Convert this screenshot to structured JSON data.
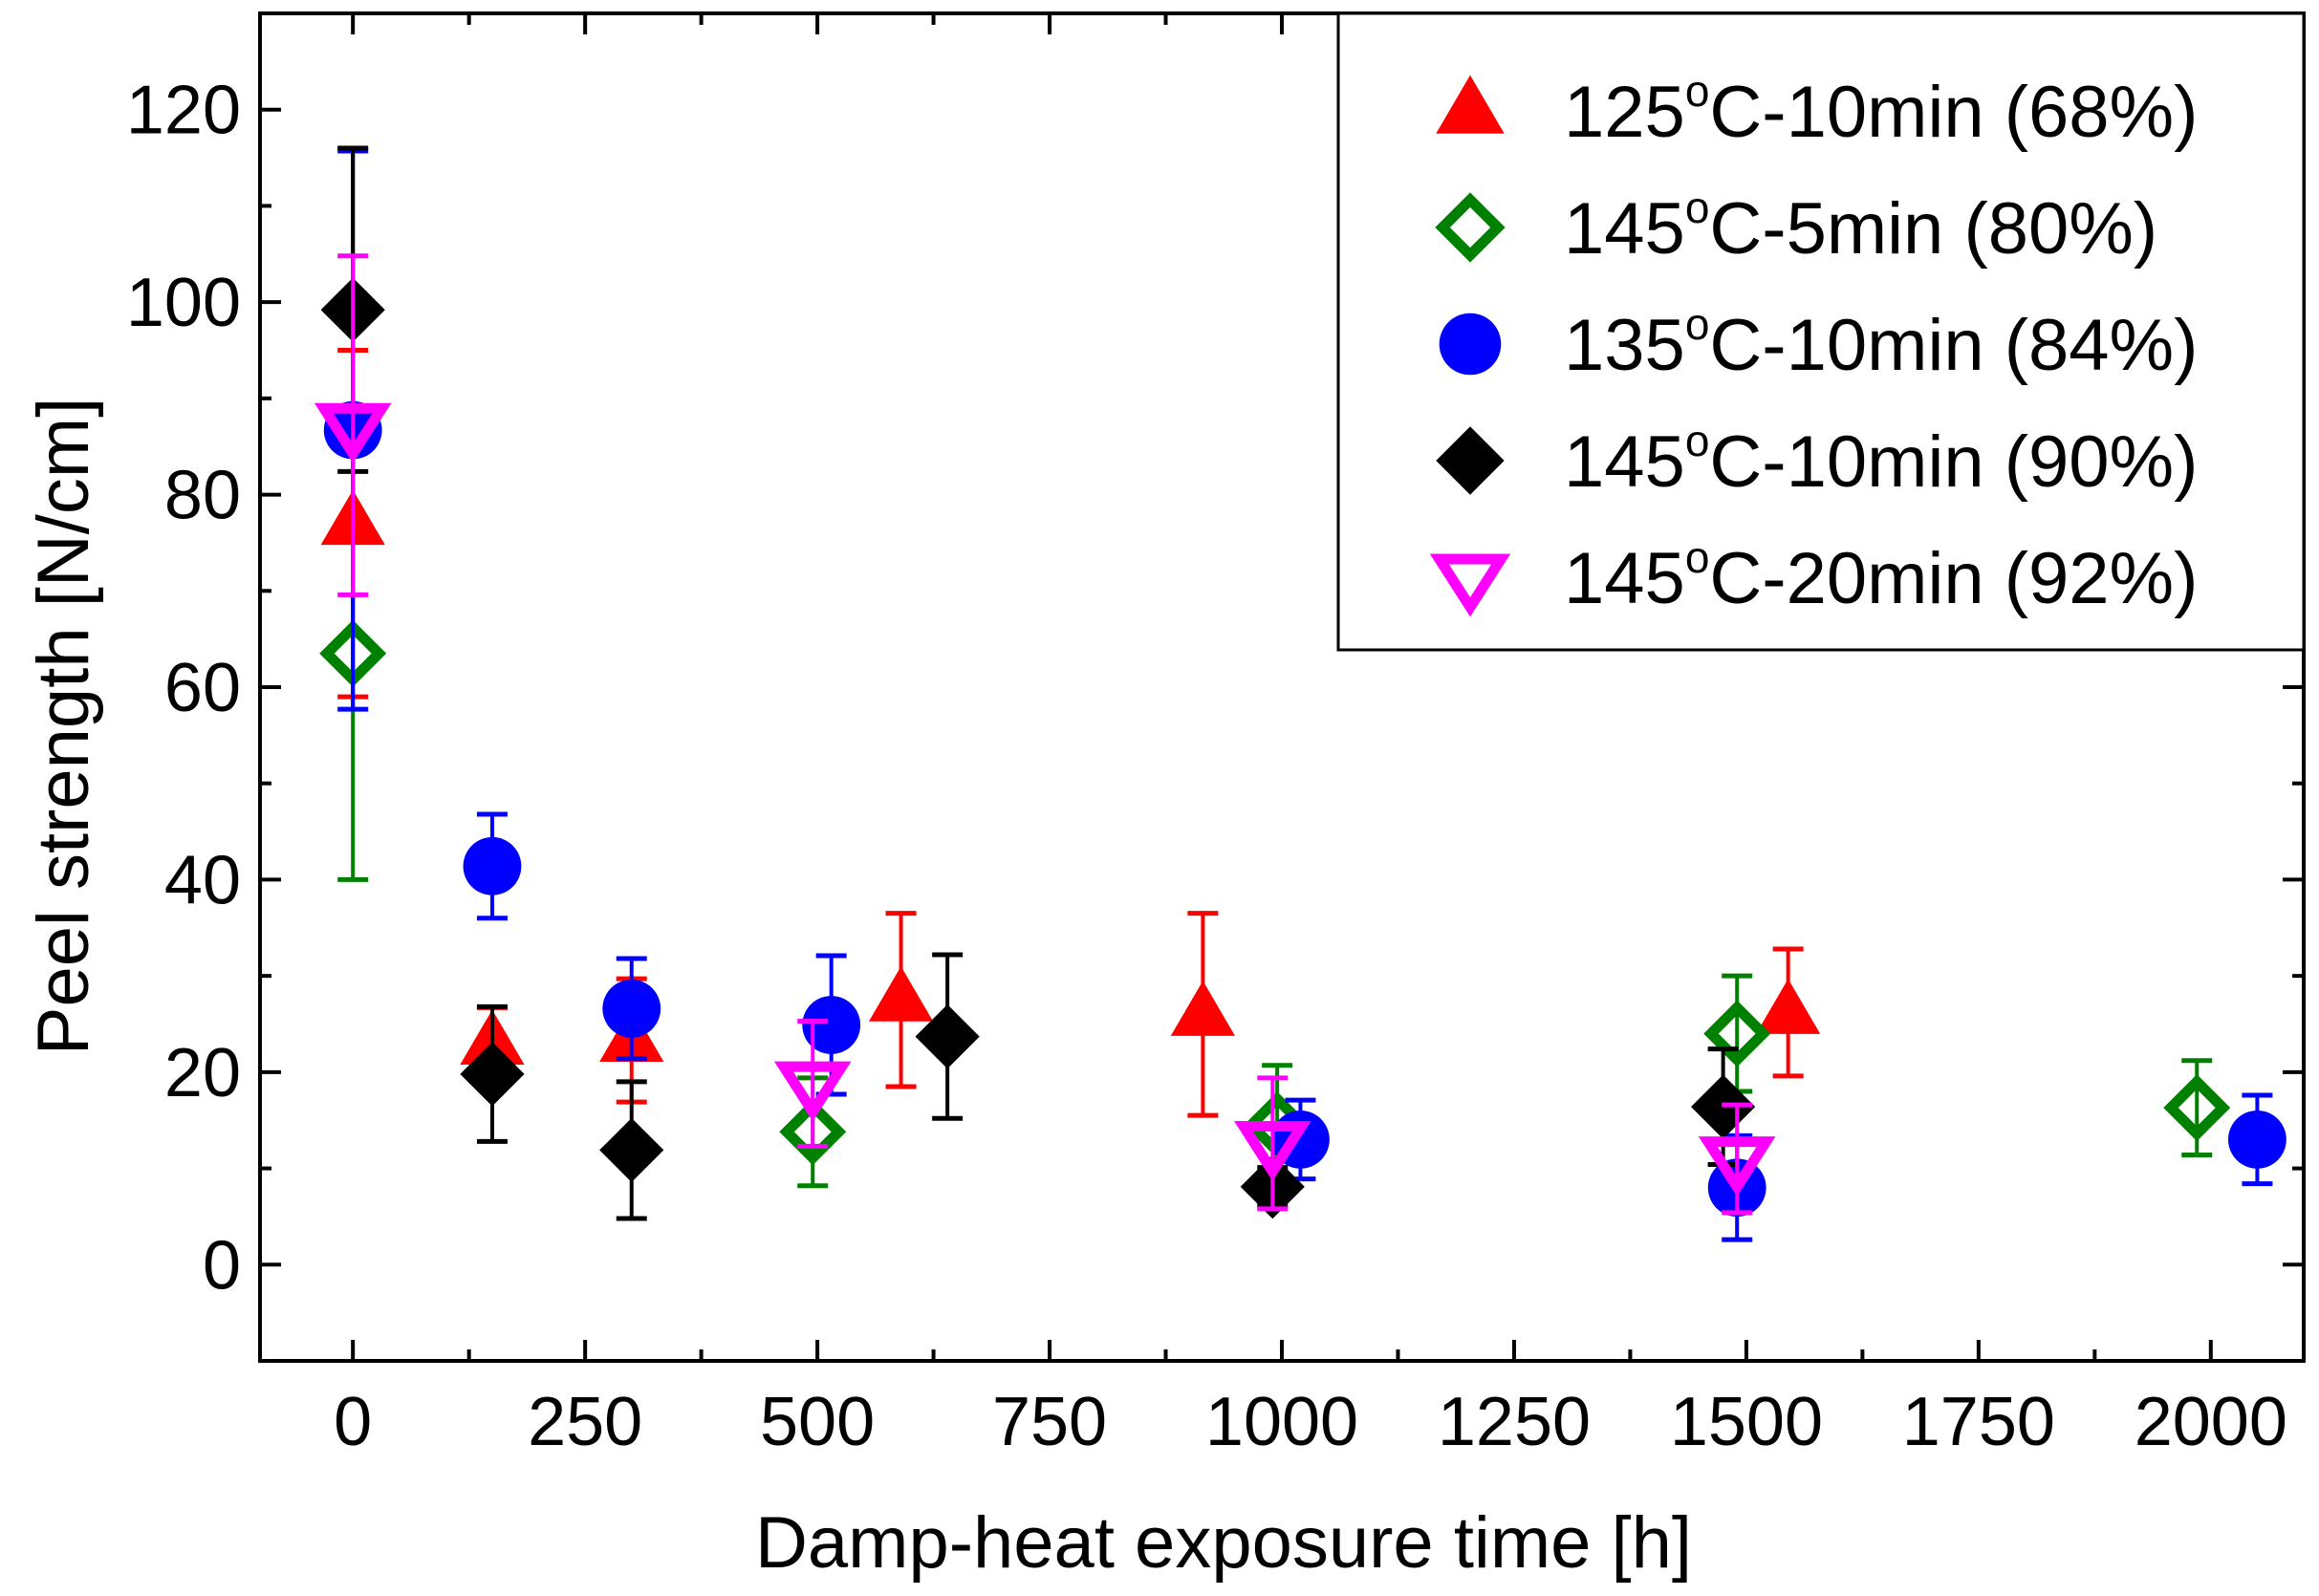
{
  "chart_data": {
    "type": "scatter",
    "title": "",
    "xlabel": "Damp-heat exposure time [h]",
    "ylabel": "Peel strength [N/cm]",
    "xlim": [
      -100,
      2100
    ],
    "ylim": [
      -10,
      130
    ],
    "xticks": [
      0,
      250,
      500,
      750,
      1000,
      1250,
      1500,
      1750,
      2000
    ],
    "yticks": [
      0,
      20,
      40,
      60,
      80,
      100,
      120
    ],
    "xtick_labels": [
      "0",
      "250",
      "500",
      "750",
      "1000",
      "1250",
      "1500",
      "1750",
      "2000"
    ],
    "ytick_labels": [
      "0",
      "20",
      "40",
      "60",
      "80",
      "100",
      "120"
    ],
    "grid": false,
    "legend_position": "top-right",
    "series": [
      {
        "name": "125°C-10min (68%)",
        "legend_main": "125",
        "legend_sup": "o",
        "legend_rest": "C-10min (68%)",
        "marker": "triangle-up",
        "filled": true,
        "color": "#ff0000",
        "points": [
          {
            "x": 0,
            "y": 77,
            "err": 18
          },
          {
            "x": 150,
            "y": 23,
            "err": 3.7
          },
          {
            "x": 300,
            "y": 23.3,
            "err": 6.4
          },
          {
            "x": 590,
            "y": 27.5,
            "err": 9
          },
          {
            "x": 915,
            "y": 26,
            "err": 10.5
          },
          {
            "x": 1545,
            "y": 26.2,
            "err": 6.6
          }
        ]
      },
      {
        "name": "145°C-5min (80%)",
        "legend_main": "145",
        "legend_sup": "o",
        "legend_rest": "C-5min (80%)",
        "marker": "diamond",
        "filled": false,
        "color": "#008000",
        "points": [
          {
            "x": 0,
            "y": 63.5,
            "err": 23.5
          },
          {
            "x": 495,
            "y": 13.8,
            "err": 5.6
          },
          {
            "x": 995,
            "y": 14.5,
            "err": 6.2
          },
          {
            "x": 1490,
            "y": 24,
            "err": 6
          },
          {
            "x": 1985,
            "y": 16.3,
            "err": 4.9
          }
        ]
      },
      {
        "name": "135°C-10min (84%)",
        "legend_main": "135",
        "legend_sup": "o",
        "legend_rest": "C-10min (84%)",
        "marker": "circle",
        "filled": true,
        "color": "#0000ff",
        "points": [
          {
            "x": 0,
            "y": 86.7,
            "err": 29
          },
          {
            "x": 150,
            "y": 41.4,
            "err": 5.4
          },
          {
            "x": 300,
            "y": 26.6,
            "err": 5.2
          },
          {
            "x": 515,
            "y": 24.9,
            "err": 7.2
          },
          {
            "x": 1020,
            "y": 13,
            "err": 4.1
          },
          {
            "x": 1490,
            "y": 8,
            "err": 5.4
          },
          {
            "x": 2050,
            "y": 13,
            "err": 4.6
          }
        ]
      },
      {
        "name": "145°C-10min (90%)",
        "legend_main": "145",
        "legend_sup": "o",
        "legend_rest": "C-10min (90%)",
        "marker": "diamond",
        "filled": true,
        "color": "#000000",
        "points": [
          {
            "x": 0,
            "y": 99.2,
            "err": 16.8
          },
          {
            "x": 150,
            "y": 19.8,
            "err": 7
          },
          {
            "x": 300,
            "y": 11.9,
            "err": 7.1
          },
          {
            "x": 640,
            "y": 23.7,
            "err": 8.5
          },
          {
            "x": 990,
            "y": 8.1,
            "err": 2
          },
          {
            "x": 1475,
            "y": 16.4,
            "err": 6
          }
        ]
      },
      {
        "name": "145°C-20min (92%)",
        "legend_main": "145",
        "legend_sup": "o",
        "legend_rest": "C-20min (92%)",
        "marker": "triangle-down",
        "filled": false,
        "color": "#ff00ff",
        "points": [
          {
            "x": 0,
            "y": 87.2,
            "err": 17.6
          },
          {
            "x": 495,
            "y": 18.8,
            "err": 6.5
          },
          {
            "x": 990,
            "y": 12.6,
            "err": 6.8
          },
          {
            "x": 1490,
            "y": 11,
            "err": 5.6
          }
        ]
      }
    ]
  }
}
